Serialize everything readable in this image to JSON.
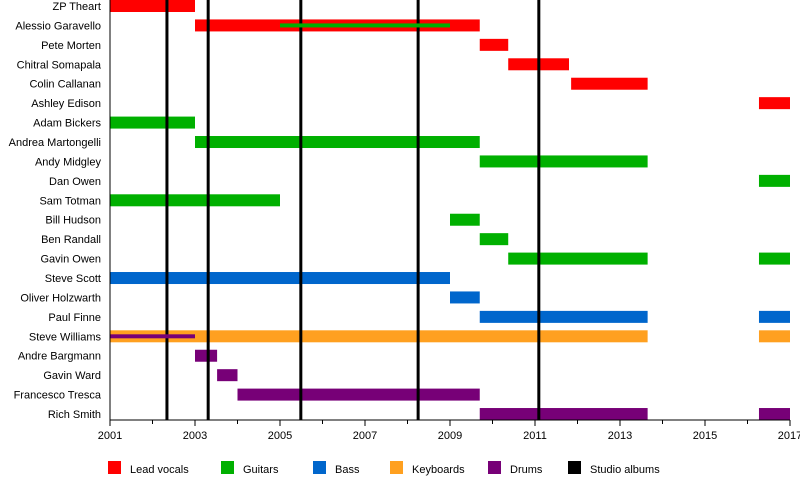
{
  "chart_data": {
    "type": "timeline",
    "title": "",
    "xlim": [
      2001,
      2017
    ],
    "x_ticks": [
      2001,
      2003,
      2005,
      2007,
      2009,
      2011,
      2013,
      2015,
      2017
    ],
    "roles": [
      {
        "key": "vocals",
        "label": "Lead vocals",
        "color": "#ff0000"
      },
      {
        "key": "guitars",
        "label": "Guitars",
        "color": "#00b000"
      },
      {
        "key": "bass",
        "label": "Bass",
        "color": "#0066cc"
      },
      {
        "key": "keys",
        "label": "Keyboards",
        "color": "#ffa020"
      },
      {
        "key": "drums",
        "label": "Drums",
        "color": "#770077"
      },
      {
        "key": "albums",
        "label": "Studio albums",
        "color": "#000000"
      }
    ],
    "members": [
      {
        "name": "ZP Theart",
        "spans": [
          {
            "role": "vocals",
            "start": 2001,
            "end": 2003
          }
        ]
      },
      {
        "name": "Alessio Garavello",
        "spans": [
          {
            "role": "vocals",
            "start": 2003,
            "end": 2009.7
          },
          {
            "role": "guitars",
            "start": 2005,
            "end": 2009,
            "overlay": true
          }
        ]
      },
      {
        "name": "Pete Morten",
        "spans": [
          {
            "role": "vocals",
            "start": 2009.7,
            "end": 2010.37
          }
        ]
      },
      {
        "name": "Chitral Somapala",
        "spans": [
          {
            "role": "vocals",
            "start": 2010.37,
            "end": 2011.8
          }
        ]
      },
      {
        "name": "Colin Callanan",
        "spans": [
          {
            "role": "vocals",
            "start": 2011.85,
            "end": 2013.65
          }
        ]
      },
      {
        "name": "Ashley Edison",
        "spans": [
          {
            "role": "vocals",
            "start": 2016.27,
            "end": 2017
          }
        ]
      },
      {
        "name": "Adam Bickers",
        "spans": [
          {
            "role": "guitars",
            "start": 2001,
            "end": 2003
          }
        ]
      },
      {
        "name": "Andrea Martongelli",
        "spans": [
          {
            "role": "guitars",
            "start": 2003,
            "end": 2009.7
          }
        ]
      },
      {
        "name": "Andy Midgley",
        "spans": [
          {
            "role": "guitars",
            "start": 2009.7,
            "end": 2013.65
          }
        ]
      },
      {
        "name": "Dan Owen",
        "spans": [
          {
            "role": "guitars",
            "start": 2016.27,
            "end": 2017
          }
        ]
      },
      {
        "name": "Sam Totman",
        "spans": [
          {
            "role": "guitars",
            "start": 2001,
            "end": 2005
          }
        ]
      },
      {
        "name": "Bill Hudson",
        "spans": [
          {
            "role": "guitars",
            "start": 2009,
            "end": 2009.7
          }
        ]
      },
      {
        "name": "Ben Randall",
        "spans": [
          {
            "role": "guitars",
            "start": 2009.7,
            "end": 2010.37
          }
        ]
      },
      {
        "name": "Gavin Owen",
        "spans": [
          {
            "role": "guitars",
            "start": 2010.37,
            "end": 2013.65
          },
          {
            "role": "guitars",
            "start": 2016.27,
            "end": 2017
          }
        ]
      },
      {
        "name": "Steve Scott",
        "spans": [
          {
            "role": "bass",
            "start": 2001,
            "end": 2009
          }
        ]
      },
      {
        "name": "Oliver Holzwarth",
        "spans": [
          {
            "role": "bass",
            "start": 2009,
            "end": 2009.7
          }
        ]
      },
      {
        "name": "Paul Finne",
        "spans": [
          {
            "role": "bass",
            "start": 2009.7,
            "end": 2013.65
          },
          {
            "role": "bass",
            "start": 2016.27,
            "end": 2017
          }
        ]
      },
      {
        "name": "Steve Williams",
        "spans": [
          {
            "role": "keys",
            "start": 2001,
            "end": 2013.65
          },
          {
            "role": "keys",
            "start": 2016.27,
            "end": 2017
          },
          {
            "role": "drums",
            "start": 2001,
            "end": 2003,
            "overlay": true
          }
        ]
      },
      {
        "name": "Andre Bargmann",
        "spans": [
          {
            "role": "drums",
            "start": 2003,
            "end": 2003.52
          }
        ]
      },
      {
        "name": "Gavin Ward",
        "spans": [
          {
            "role": "drums",
            "start": 2003.52,
            "end": 2004.0
          }
        ]
      },
      {
        "name": "Francesco Tresca",
        "spans": [
          {
            "role": "drums",
            "start": 2004.0,
            "end": 2009.7
          }
        ]
      },
      {
        "name": "Rich Smith",
        "spans": [
          {
            "role": "drums",
            "start": 2009.7,
            "end": 2013.65
          },
          {
            "role": "drums",
            "start": 2016.27,
            "end": 2017
          }
        ]
      }
    ],
    "studio_albums": [
      2002.34,
      2003.31,
      2005.49,
      2008.25,
      2011.09
    ]
  }
}
